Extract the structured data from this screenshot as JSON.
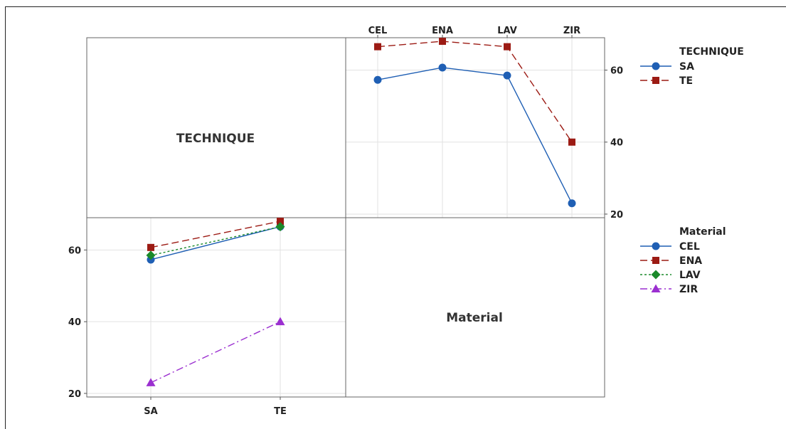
{
  "chart_data": {
    "type": "line",
    "panel_top_right": {
      "categories": [
        "CEL",
        "ENA",
        "LAV",
        "ZIR"
      ],
      "ylim": [
        19,
        69
      ],
      "yticks": [
        20,
        40,
        60
      ],
      "series": [
        {
          "name": "SA",
          "values": [
            57.3,
            60.7,
            58.5,
            23.0
          ],
          "color": "#1f5fb4",
          "marker": "circle",
          "dash": "solid"
        },
        {
          "name": "TE",
          "values": [
            66.5,
            68.0,
            66.5,
            40.0
          ],
          "color": "#9c1b14",
          "marker": "square",
          "dash": "dashed"
        }
      ]
    },
    "panel_bottom_left": {
      "categories": [
        "SA",
        "TE"
      ],
      "ylim": [
        19,
        69
      ],
      "yticks": [
        20,
        40,
        60
      ],
      "series": [
        {
          "name": "CEL",
          "values": [
            57.3,
            66.5
          ],
          "color": "#1f5fb4",
          "marker": "circle",
          "dash": "solid"
        },
        {
          "name": "ENA",
          "values": [
            60.7,
            68.0
          ],
          "color": "#9c1b14",
          "marker": "square",
          "dash": "dashed"
        },
        {
          "name": "LAV",
          "values": [
            58.5,
            66.5
          ],
          "color": "#1a8a2a",
          "marker": "diamond",
          "dash": "dotted"
        },
        {
          "name": "ZIR",
          "values": [
            23.0,
            40.0
          ],
          "color": "#9b2fd0",
          "marker": "triangle",
          "dash": "dashdot"
        }
      ]
    },
    "cell_labels": {
      "top_left": "TECHNIQUE",
      "bottom_right": "Material"
    },
    "legends": [
      {
        "title": "TECHNIQUE",
        "entries": [
          "SA",
          "TE"
        ]
      },
      {
        "title": "Material",
        "entries": [
          "CEL",
          "ENA",
          "LAV",
          "ZIR"
        ]
      }
    ]
  }
}
